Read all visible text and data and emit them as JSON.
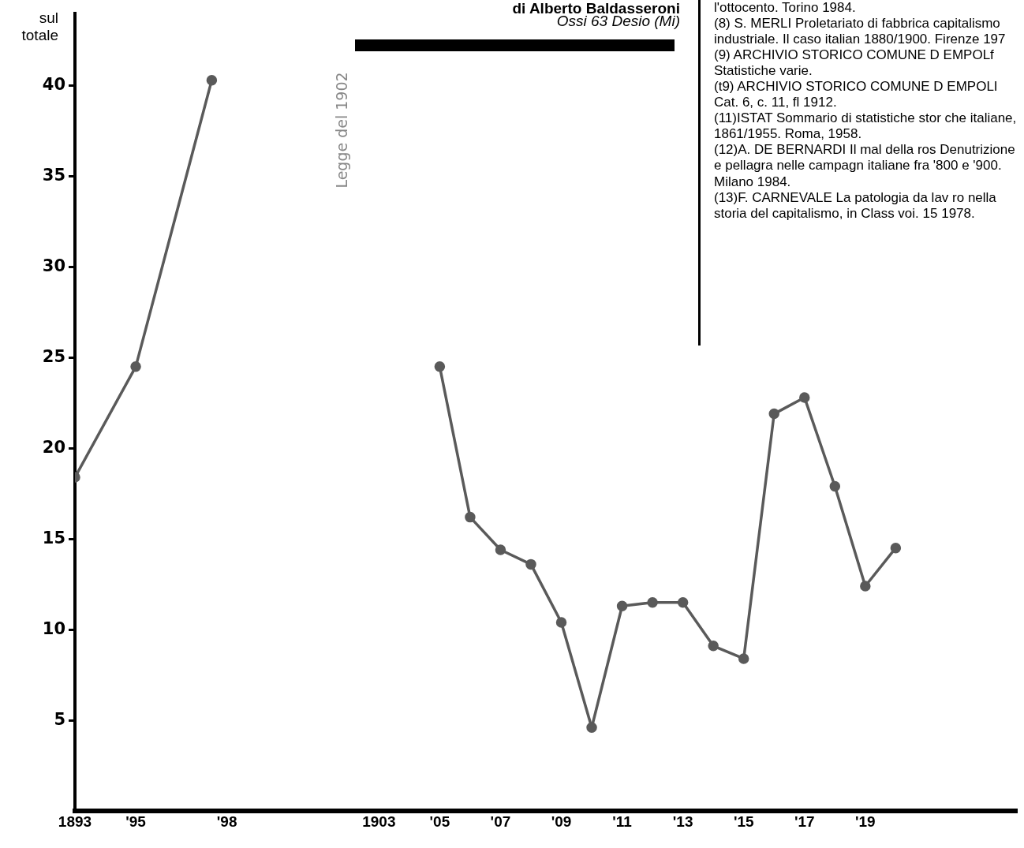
{
  "chart_data": {
    "type": "line",
    "title": "di Alberto Baldasseroni",
    "subtitle": "Ossi 63 Desio (Mi)",
    "ylabel": "sul totale",
    "x": [
      1893,
      1895,
      1897.5,
      1904,
      1905,
      1906,
      1907,
      1908,
      1909,
      1910,
      1911,
      1912,
      1913,
      1914,
      1915,
      1916,
      1917,
      1918,
      1919,
      1920
    ],
    "series": [
      {
        "color": "#5a5a5a",
        "values": [
          18.4,
          24.5,
          40.3,
          null,
          24.5,
          16.2,
          14.4,
          13.6,
          10.4,
          4.6,
          11.3,
          11.5,
          11.5,
          9.1,
          8.4,
          21.9,
          22.8,
          17.9,
          12.4,
          14.5
        ]
      }
    ],
    "xlim": [
      1893,
      1924
    ],
    "ylim": [
      0,
      44
    ],
    "xticks": [
      1893,
      {
        "value": 1895,
        "label": "'95"
      },
      {
        "value": 1898,
        "label": "'98"
      },
      1903,
      {
        "value": 1905,
        "label": "'05"
      },
      {
        "value": 1907,
        "label": "'07"
      },
      {
        "value": 1909,
        "label": "'09"
      },
      {
        "value": 1911,
        "label": "'11"
      },
      {
        "value": 1913,
        "label": "'13"
      },
      {
        "value": 1915,
        "label": "'15"
      },
      {
        "value": 1917,
        "label": "'17"
      },
      {
        "value": 1919,
        "label": "'19"
      }
    ],
    "yticks": [
      5,
      10,
      15,
      20,
      25,
      30,
      35,
      40
    ],
    "grid": false,
    "marker": "circle",
    "line_style": "solid",
    "annotations": [
      "Legge del 1902",
      "l'ottocento. Torino 1984.",
      "(8) S. MERLI Proletariato di fabbrica capitalismo industriale. Il caso italian 1880/1900. Firenze 197",
      "(9) ARCHIVIO STORICO COMUNE D EMPOLf Statistiche varie.",
      "(t9) ARCHIVIO STORICO COMUNE D EMPOLI Cat. 6, c. 11, fl 1912.",
      "(11)ISTAT Sommario di statistiche stor che italiane, 1861/1955. Roma, 1958.",
      "(12)A. DE BERNARDI Il mal della ros Denutrizione e pellagra nelle campagn italiane fra '800 e '900. Milano 1984.",
      "(13)F. CARNEVALE La patologia da lav ro nella storia del capitalismo, in Class voi. 15 1978."
    ]
  }
}
